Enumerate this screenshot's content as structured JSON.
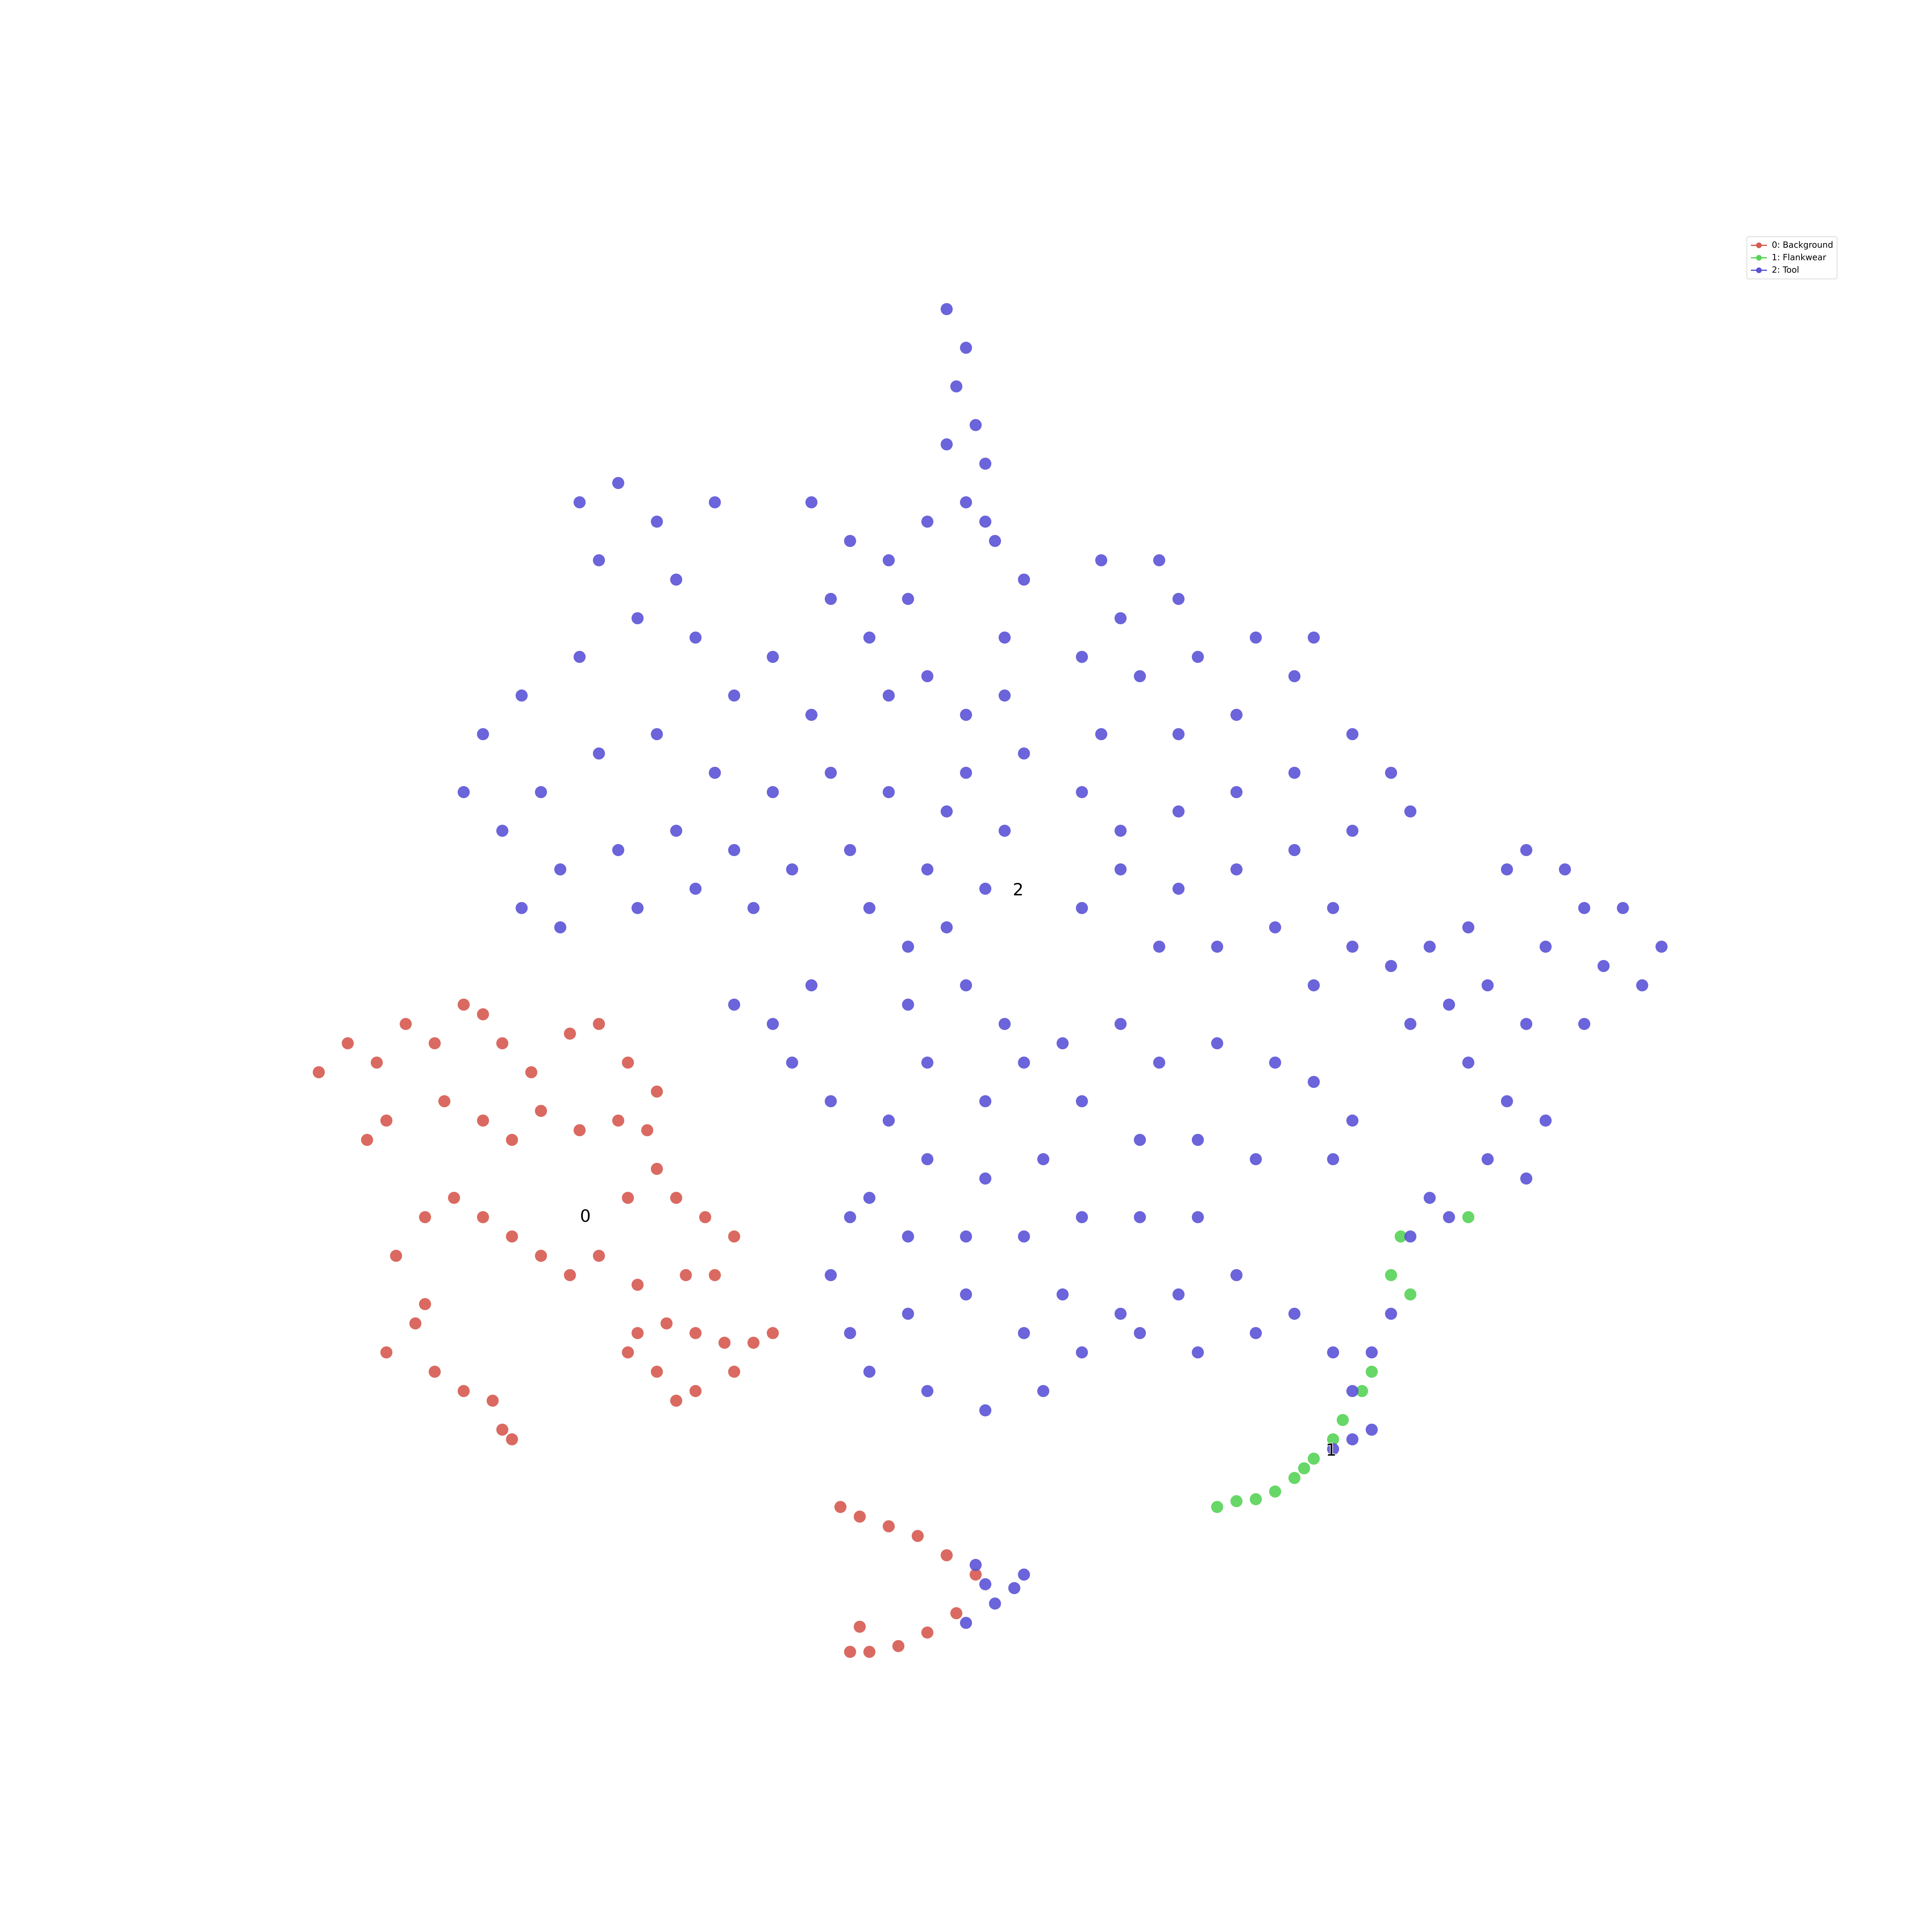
{
  "chart_data": {
    "type": "scatter",
    "xlim": [
      0,
      100
    ],
    "ylim": [
      0,
      100
    ],
    "legend": "upper right",
    "series": [
      {
        "name": "0: Background",
        "color": "#d65a50",
        "x": [
          16.5,
          18,
          19.5,
          21,
          22.5,
          24,
          25,
          26,
          27.5,
          29.5,
          31,
          32.5,
          34,
          32,
          30,
          28,
          25,
          23,
          20,
          19,
          26.5,
          33.5,
          20.5,
          22,
          23.5,
          25,
          26.5,
          28,
          29.5,
          31,
          32.5,
          34,
          35,
          36.5,
          38,
          37,
          35.5,
          33,
          20,
          21.5,
          22.5,
          24,
          25.5,
          26,
          26.5,
          22,
          32.5,
          33,
          34.5,
          36,
          37.5,
          39,
          40,
          38,
          36,
          34,
          35,
          43.5,
          44.5,
          46,
          47.5,
          49,
          50.5,
          49.5,
          48,
          46.5,
          45,
          44,
          44.5
        ],
        "y": [
          44.5,
          46,
          45,
          47,
          46,
          48,
          47.5,
          46,
          44.5,
          46.5,
          47,
          45,
          43.5,
          42,
          41.5,
          42.5,
          42,
          43,
          42,
          41,
          41,
          41.5,
          35,
          37,
          38,
          37,
          36,
          35,
          34,
          35,
          38,
          39.5,
          38,
          37,
          36,
          34,
          34,
          33.5,
          30,
          31.5,
          29,
          28,
          27.5,
          26,
          25.5,
          32.5,
          30,
          31,
          31.5,
          31,
          30.5,
          30.5,
          31,
          29,
          28,
          29,
          27.5,
          22,
          21.5,
          21,
          20.5,
          19.5,
          18.5,
          16.5,
          15.5,
          14.8,
          14.5,
          14.5,
          15.8
        ]
      },
      {
        "name": "1: Flankwear",
        "color": "#57d357",
        "x": [
          63,
          64,
          65,
          66,
          67,
          68,
          69,
          69.5,
          70.5,
          71,
          72,
          72.5,
          73,
          76,
          67.5
        ],
        "y": [
          22,
          22.3,
          22.4,
          22.8,
          23.5,
          24.5,
          25.5,
          26.5,
          28,
          29,
          34,
          36,
          33,
          37,
          24
        ]
      },
      {
        "name": "2: Tool",
        "color": "#5b53d6",
        "x": [
          49,
          50,
          49.5,
          50.5,
          51,
          49,
          50,
          51.5,
          48,
          30,
          32,
          34,
          31,
          35,
          37,
          42,
          44,
          46,
          43,
          45,
          47,
          53,
          52,
          51,
          52,
          53,
          50,
          48,
          46,
          40,
          42,
          38,
          36,
          33,
          30,
          27,
          25,
          24,
          26,
          28,
          31,
          34,
          37,
          40,
          43,
          46,
          49,
          52,
          50,
          44,
          41,
          38,
          35,
          32,
          29,
          27,
          29,
          33,
          36,
          39,
          45,
          48,
          51,
          47,
          49,
          57,
          60,
          61,
          58,
          56,
          59,
          62,
          65,
          68,
          67,
          64,
          61,
          57,
          56,
          58,
          61,
          64,
          67,
          70,
          72,
          73,
          70,
          67,
          64,
          61,
          58,
          56,
          60,
          63,
          66,
          69,
          38,
          40,
          42,
          41,
          43,
          47,
          50,
          52,
          53,
          48,
          51,
          55,
          58,
          60,
          63,
          66,
          68,
          70,
          69,
          65,
          62,
          59,
          56,
          54,
          51,
          48,
          46,
          45,
          47,
          50,
          53,
          56,
          59,
          62,
          64,
          61,
          58,
          55,
          53,
          56,
          59,
          62,
          65,
          67,
          69,
          50,
          47,
          44,
          45,
          48,
          51,
          54,
          43,
          44,
          68,
          70,
          72,
          74,
          76,
          78,
          79,
          81,
          82,
          84,
          86,
          85,
          83,
          80,
          77,
          75,
          73,
          79,
          82,
          76,
          78,
          80,
          79,
          77,
          75,
          74,
          73,
          71,
          72,
          70,
          71,
          70,
          69,
          51,
          52.5,
          53,
          51.5,
          50,
          50.5
        ],
        "y": [
          84,
          82,
          80,
          78,
          76,
          77,
          74,
          72,
          73,
          74,
          75,
          73,
          71,
          70,
          74,
          74,
          72,
          71,
          69,
          67,
          69,
          70,
          67,
          73,
          64,
          61,
          63,
          65,
          64,
          66,
          63,
          64,
          67,
          68,
          66,
          64,
          62,
          59,
          57,
          59,
          61,
          62,
          60,
          59,
          60,
          59,
          58,
          57,
          60,
          56,
          55,
          56,
          57,
          56,
          55,
          53,
          52,
          53,
          54,
          53,
          53,
          55,
          54,
          51,
          52,
          71,
          71,
          69,
          68,
          66,
          65,
          66,
          67,
          67,
          65,
          63,
          62,
          62,
          59,
          57,
          58,
          59,
          60,
          62,
          60,
          58,
          57,
          56,
          55,
          54,
          55,
          53,
          51,
          51,
          52,
          53,
          48,
          47,
          49,
          45,
          43,
          48,
          49,
          47,
          45,
          45,
          43,
          46,
          47,
          45,
          46,
          45,
          44,
          42,
          40,
          40,
          41,
          41,
          43,
          40,
          39,
          40,
          42,
          38,
          36,
          36,
          36,
          37,
          37,
          37,
          34,
          33,
          32,
          33,
          31,
          30,
          31,
          30,
          31,
          32,
          30,
          33,
          32,
          31,
          29,
          28,
          27,
          28,
          34,
          37,
          49,
          51,
          50,
          51,
          52,
          55,
          56,
          55,
          53,
          53,
          51,
          49,
          50,
          51,
          49,
          48,
          47,
          47,
          47,
          45,
          43,
          42,
          39,
          40,
          37,
          38,
          36,
          30,
          32,
          28,
          26,
          25.5,
          25,
          18,
          17.8,
          18.5,
          17,
          16,
          19
        ]
      }
    ],
    "annotations": [
      {
        "text": "0",
        "x": 30.3,
        "y": 37.0
      },
      {
        "text": "2",
        "x": 52.7,
        "y": 53.9
      },
      {
        "text": "1",
        "x": 68.9,
        "y": 24.9
      }
    ]
  }
}
